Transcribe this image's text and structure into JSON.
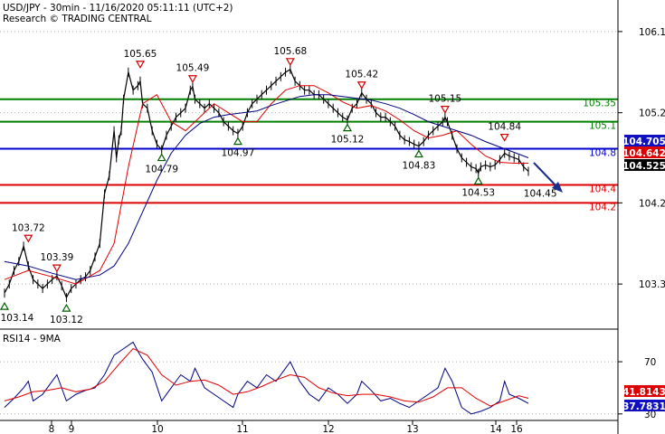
{
  "header": {
    "line1": "USD/JPY - 30min - 11/16/2020 05:11:11 (UTC+2)",
    "line2": "Research © TRADING CENTRAL"
  },
  "rsi_label": "RSI14 - 9MA",
  "colors": {
    "price": "#000000",
    "ma_fast": "#e00000",
    "ma_slow": "#000080",
    "support": "#008000",
    "resistance_blue": "#0000cc",
    "resistance_red": "#dd0000",
    "arrow": "#1a2c8c",
    "rsi": "#000080",
    "rsi_ma": "#e00000",
    "grid": "#b0b0b0"
  },
  "chart_data": {
    "type": "line",
    "title": "USD/JPY - 30min - 11/16/2020 05:11:11 (UTC+2)",
    "x_tick_labels": [
      "8",
      "9",
      "10",
      "11",
      "12",
      "13",
      "14",
      "16"
    ],
    "y_ticks": [
      "106.1",
      "105.2",
      "104.2",
      "103.3"
    ],
    "y_tick_values": [
      106.1,
      105.2,
      104.2,
      103.3
    ],
    "ylim": [
      102.8,
      106.45
    ],
    "horizontal_levels": [
      {
        "value": 105.35,
        "label": "105.35",
        "color": "#008000"
      },
      {
        "value": 105.1,
        "label": "105.1",
        "color": "#008000"
      },
      {
        "value": 104.8,
        "label": "104.8",
        "color": "#0000cc"
      },
      {
        "value": 104.4,
        "label": "104.4",
        "color": "#dd0000"
      },
      {
        "value": 104.2,
        "label": "104.2",
        "color": "#dd0000"
      }
    ],
    "price_badges": [
      {
        "value": 104.705,
        "label": "104.705",
        "bg": "#1010c0",
        "fg": "#ffffff"
      },
      {
        "value": 104.642,
        "label": "104.642",
        "bg": "#dd0000",
        "fg": "#ffffff"
      },
      {
        "value": 104.525,
        "label": "104.525",
        "bg": "#000000",
        "fg": "#ffffff"
      }
    ],
    "annotations": [
      {
        "type": "high",
        "label": "103.72",
        "x": 0.5,
        "price": 103.72
      },
      {
        "type": "low",
        "label": "103.14",
        "x": 0.0,
        "price": 103.14
      },
      {
        "type": "high",
        "label": "103.39",
        "x": 1.1,
        "price": 103.39
      },
      {
        "type": "low",
        "label": "103.12",
        "x": 1.3,
        "price": 103.12
      },
      {
        "type": "high",
        "label": "105.65",
        "x": 2.85,
        "price": 105.65
      },
      {
        "type": "low",
        "label": "104.79",
        "x": 3.3,
        "price": 104.79
      },
      {
        "type": "high",
        "label": "105.49",
        "x": 3.95,
        "price": 105.49
      },
      {
        "type": "low",
        "label": "104.97",
        "x": 4.9,
        "price": 104.97
      },
      {
        "type": "high",
        "label": "105.68",
        "x": 6.0,
        "price": 105.68
      },
      {
        "type": "low",
        "label": "105.12",
        "x": 7.2,
        "price": 105.12
      },
      {
        "type": "high",
        "label": "105.42",
        "x": 7.5,
        "price": 105.42
      },
      {
        "type": "low",
        "label": "104.83",
        "x": 8.7,
        "price": 104.83
      },
      {
        "type": "high",
        "label": "105.15",
        "x": 9.25,
        "price": 105.15
      },
      {
        "type": "low",
        "label": "104.53",
        "x": 9.95,
        "price": 104.53
      },
      {
        "type": "high",
        "label": "104.84",
        "x": 10.5,
        "price": 104.84
      },
      {
        "type": "target",
        "label": "104.45",
        "x": 11.25,
        "price": 104.45
      }
    ],
    "series": [
      {
        "name": "price",
        "x": [
          0,
          0.1,
          0.2,
          0.3,
          0.4,
          0.5,
          0.6,
          0.7,
          0.8,
          0.9,
          1.0,
          1.1,
          1.2,
          1.3,
          1.4,
          1.5,
          1.6,
          1.7,
          1.8,
          1.9,
          2.0,
          2.1,
          2.2,
          2.3,
          2.35,
          2.4,
          2.45,
          2.5,
          2.6,
          2.7,
          2.8,
          2.85,
          2.9,
          3.0,
          3.1,
          3.2,
          3.3,
          3.4,
          3.5,
          3.6,
          3.7,
          3.8,
          3.9,
          3.95,
          4.0,
          4.1,
          4.2,
          4.3,
          4.4,
          4.5,
          4.6,
          4.7,
          4.8,
          4.9,
          5.0,
          5.1,
          5.2,
          5.3,
          5.4,
          5.5,
          5.6,
          5.7,
          5.8,
          5.9,
          6.0,
          6.1,
          6.2,
          6.3,
          6.4,
          6.5,
          6.6,
          6.7,
          6.8,
          6.9,
          7.0,
          7.1,
          7.2,
          7.3,
          7.4,
          7.5,
          7.6,
          7.7,
          7.8,
          7.9,
          8.0,
          8.1,
          8.2,
          8.3,
          8.4,
          8.5,
          8.6,
          8.7,
          8.8,
          8.9,
          9.0,
          9.1,
          9.2,
          9.25,
          9.3,
          9.4,
          9.5,
          9.6,
          9.7,
          9.8,
          9.9,
          9.95,
          10.0,
          10.1,
          10.2,
          10.3,
          10.4,
          10.5,
          10.6,
          10.7,
          10.8,
          10.9,
          11.0
        ],
        "values": [
          103.2,
          103.3,
          103.45,
          103.55,
          103.72,
          103.5,
          103.35,
          103.3,
          103.25,
          103.3,
          103.35,
          103.39,
          103.28,
          103.15,
          103.25,
          103.3,
          103.35,
          103.38,
          103.45,
          103.6,
          103.75,
          104.3,
          104.5,
          105.0,
          104.7,
          104.9,
          105.0,
          105.35,
          105.65,
          105.45,
          105.5,
          105.55,
          105.3,
          105.25,
          105.0,
          104.85,
          104.79,
          104.95,
          105.05,
          105.15,
          105.2,
          105.25,
          105.45,
          105.49,
          105.35,
          105.3,
          105.25,
          105.3,
          105.25,
          105.2,
          105.1,
          105.05,
          105.0,
          104.97,
          105.05,
          105.2,
          105.3,
          105.35,
          105.4,
          105.45,
          105.5,
          105.55,
          105.6,
          105.65,
          105.68,
          105.55,
          105.5,
          105.45,
          105.45,
          105.4,
          105.4,
          105.35,
          105.3,
          105.25,
          105.2,
          105.15,
          105.12,
          105.25,
          105.3,
          105.42,
          105.35,
          105.3,
          105.2,
          105.15,
          105.15,
          105.1,
          105.05,
          104.95,
          104.9,
          104.88,
          104.85,
          104.83,
          104.88,
          104.95,
          105.0,
          105.05,
          105.1,
          105.15,
          105.1,
          104.95,
          104.8,
          104.7,
          104.65,
          104.6,
          104.58,
          104.53,
          104.6,
          104.62,
          104.6,
          104.62,
          104.68,
          104.75,
          104.72,
          104.7,
          104.68,
          104.6,
          104.55
        ]
      },
      {
        "name": "ma_fast",
        "x": [
          0,
          0.5,
          1.0,
          1.5,
          2.0,
          2.3,
          2.6,
          2.9,
          3.2,
          3.5,
          3.8,
          4.1,
          4.4,
          4.7,
          5.0,
          5.3,
          5.6,
          5.9,
          6.2,
          6.5,
          6.8,
          7.1,
          7.4,
          7.7,
          8.0,
          8.3,
          8.6,
          8.9,
          9.2,
          9.5,
          9.8,
          10.1,
          10.4,
          10.7,
          11.0
        ],
        "values": [
          103.35,
          103.45,
          103.38,
          103.3,
          103.45,
          103.75,
          104.6,
          105.3,
          105.4,
          105.1,
          105.0,
          105.15,
          105.3,
          105.2,
          105.1,
          105.1,
          105.3,
          105.45,
          105.5,
          105.5,
          105.42,
          105.32,
          105.25,
          105.28,
          105.22,
          105.12,
          105.0,
          104.92,
          104.95,
          105.0,
          104.85,
          104.72,
          104.65,
          104.64,
          104.64
        ]
      },
      {
        "name": "ma_slow",
        "x": [
          0,
          0.5,
          1.0,
          1.5,
          2.0,
          2.3,
          2.6,
          2.9,
          3.2,
          3.5,
          3.8,
          4.1,
          4.4,
          4.7,
          5.0,
          5.3,
          5.6,
          5.9,
          6.2,
          6.5,
          6.8,
          7.1,
          7.4,
          7.7,
          8.0,
          8.3,
          8.6,
          8.9,
          9.2,
          9.5,
          9.8,
          10.1,
          10.4,
          10.7,
          11.0
        ],
        "values": [
          103.55,
          103.5,
          103.42,
          103.35,
          103.4,
          103.5,
          103.75,
          104.1,
          104.45,
          104.75,
          104.95,
          105.08,
          105.15,
          105.18,
          105.2,
          105.22,
          105.28,
          105.33,
          105.38,
          105.4,
          105.4,
          105.38,
          105.36,
          105.34,
          105.3,
          105.25,
          105.18,
          105.1,
          105.05,
          105.0,
          104.95,
          104.88,
          104.82,
          104.76,
          104.7
        ]
      }
    ],
    "rsi": {
      "ylim": [
        25,
        95
      ],
      "y_ticks": [
        "70",
        "30"
      ],
      "y_tick_values": [
        70,
        30
      ],
      "badges": [
        {
          "value": 41.8143,
          "label": "41.8143",
          "bg": "#dd0000",
          "fg": "#ffffff"
        },
        {
          "value": 37.7831,
          "label": "37.7831",
          "bg": "#1010c0",
          "fg": "#ffffff"
        }
      ],
      "series": [
        {
          "name": "rsi",
          "x": [
            0,
            0.2,
            0.4,
            0.5,
            0.6,
            0.8,
            1.0,
            1.1,
            1.3,
            1.5,
            1.7,
            1.9,
            2.1,
            2.3,
            2.5,
            2.7,
            2.8,
            2.9,
            3.1,
            3.3,
            3.5,
            3.7,
            3.9,
            4.0,
            4.2,
            4.4,
            4.6,
            4.8,
            4.9,
            5.1,
            5.3,
            5.5,
            5.7,
            5.9,
            6.0,
            6.2,
            6.4,
            6.6,
            6.8,
            7.0,
            7.2,
            7.4,
            7.5,
            7.7,
            7.9,
            8.1,
            8.3,
            8.5,
            8.7,
            8.9,
            9.1,
            9.25,
            9.4,
            9.6,
            9.8,
            10.0,
            10.2,
            10.4,
            10.5,
            10.6,
            10.8,
            11.0
          ],
          "values": [
            35,
            42,
            50,
            55,
            40,
            45,
            55,
            60,
            40,
            45,
            48,
            50,
            60,
            75,
            80,
            85,
            78,
            72,
            62,
            40,
            50,
            60,
            55,
            65,
            50,
            45,
            40,
            35,
            45,
            55,
            50,
            60,
            55,
            65,
            70,
            55,
            45,
            40,
            50,
            45,
            38,
            45,
            55,
            48,
            40,
            42,
            38,
            35,
            40,
            45,
            50,
            65,
            55,
            35,
            30,
            32,
            35,
            40,
            55,
            45,
            42,
            38
          ]
        },
        {
          "name": "rsi_ma",
          "x": [
            0,
            0.3,
            0.6,
            0.9,
            1.2,
            1.5,
            1.8,
            2.1,
            2.4,
            2.7,
            3.0,
            3.3,
            3.6,
            3.9,
            4.2,
            4.5,
            4.8,
            5.1,
            5.4,
            5.7,
            6.0,
            6.3,
            6.6,
            6.9,
            7.2,
            7.5,
            7.8,
            8.1,
            8.4,
            8.7,
            9.0,
            9.3,
            9.6,
            9.9,
            10.2,
            10.5,
            10.8,
            11.0
          ],
          "values": [
            40,
            43,
            47,
            48,
            50,
            47,
            49,
            55,
            68,
            80,
            75,
            60,
            52,
            55,
            56,
            52,
            45,
            47,
            51,
            56,
            60,
            58,
            50,
            46,
            44,
            45,
            45,
            43,
            40,
            39,
            43,
            50,
            50,
            42,
            36,
            40,
            44,
            42
          ]
        }
      ]
    }
  }
}
